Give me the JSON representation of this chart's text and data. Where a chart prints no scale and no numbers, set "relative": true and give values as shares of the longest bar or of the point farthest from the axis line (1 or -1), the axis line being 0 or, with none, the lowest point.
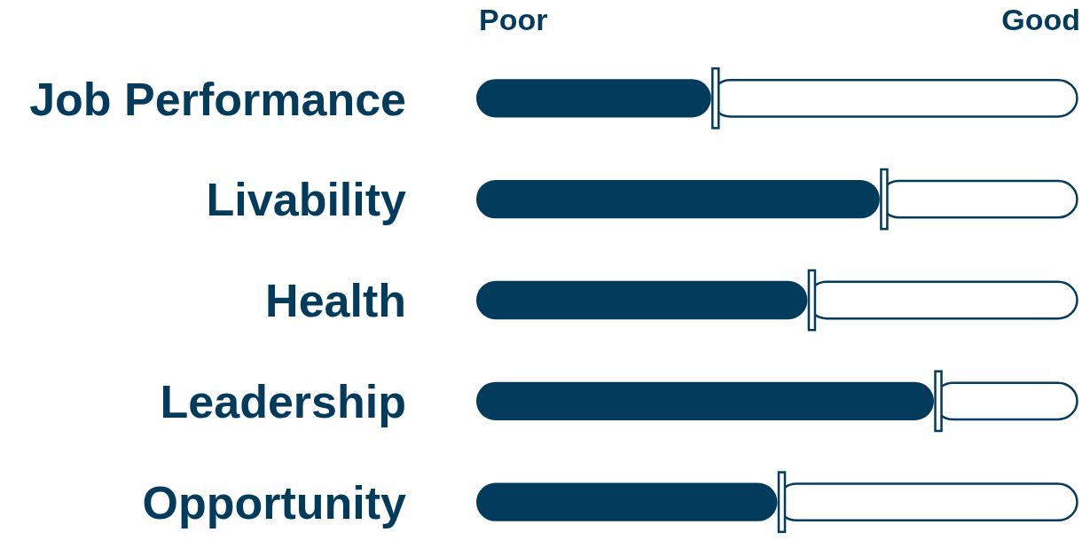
{
  "chart_data": {
    "type": "bar",
    "orientation": "horizontal",
    "relative": true,
    "stacked": true,
    "categories": [
      "Job Performance",
      "Livability",
      "Health",
      "Leadership",
      "Opportunity"
    ],
    "series": [
      {
        "color": "#033b5c",
        "values": [
          0.39,
          0.67,
          0.55,
          0.76,
          0.5
        ]
      },
      {
        "color": "#ffffff",
        "values": [
          0.61,
          0.33,
          0.45,
          0.24,
          0.5
        ]
      }
    ],
    "annotations": [
      "Poor",
      "Good"
    ]
  }
}
